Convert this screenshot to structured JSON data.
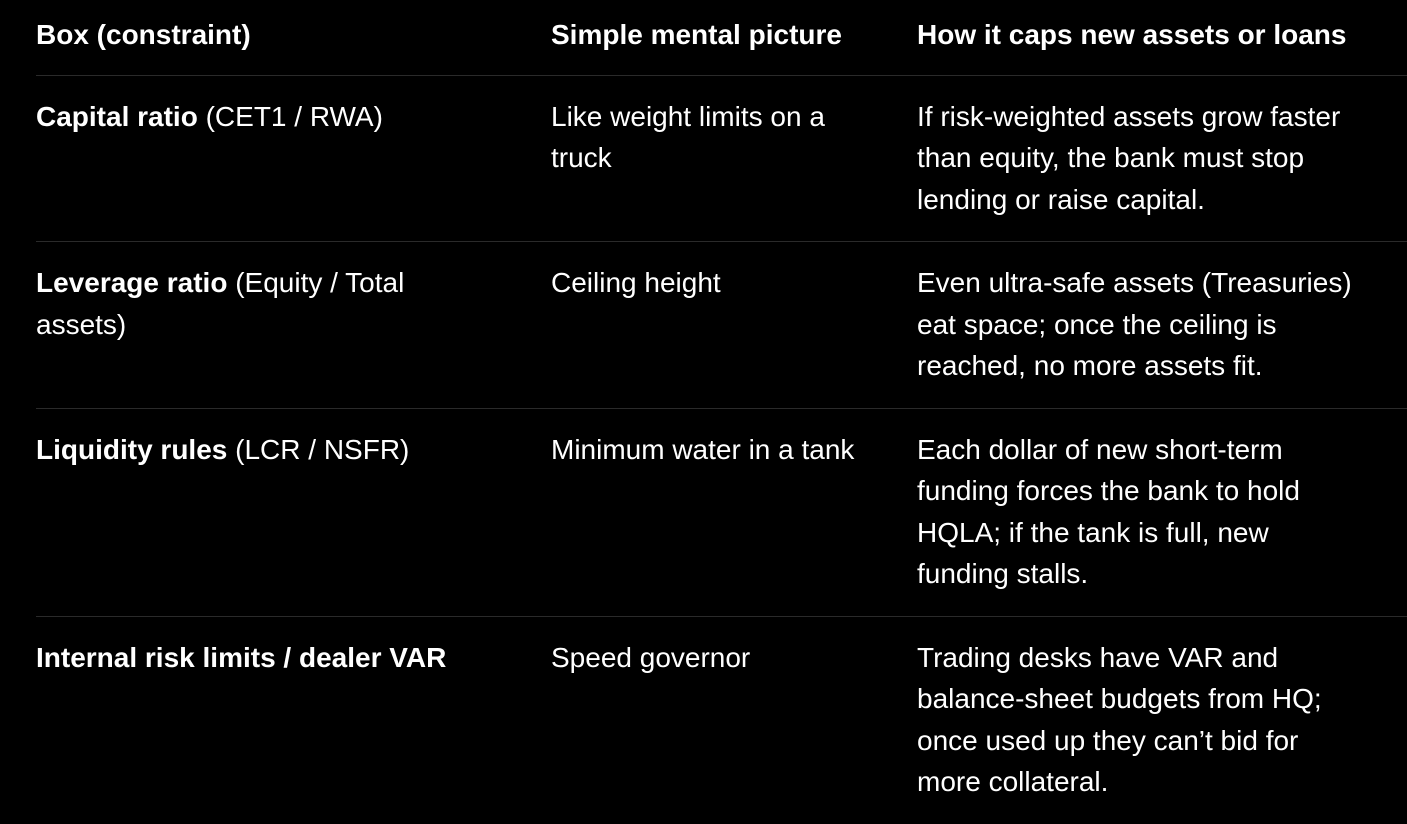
{
  "table": {
    "headers": [
      "Box (constraint)",
      "Simple mental picture",
      "How it caps new assets or loans"
    ],
    "rows": [
      {
        "box_bold": "Capital ratio",
        "box_rest": " (CET1 / RWA)",
        "picture": [
          "Like weight limits on a",
          "truck"
        ],
        "caps": [
          "If risk-weighted assets grow faster",
          "than equity, the bank must stop",
          "lending or raise capital."
        ]
      },
      {
        "box_bold": "Leverage ratio",
        "box_rest": " (Equity / Total",
        "box_rest2": "assets)",
        "picture": [
          "Ceiling height"
        ],
        "caps": [
          "Even ultra-safe assets (Treasuries)",
          "eat space; once the ceiling is",
          "reached, no more assets fit."
        ]
      },
      {
        "box_bold": "Liquidity rules",
        "box_rest": " (LCR / NSFR)",
        "picture": [
          "Minimum water in a tank"
        ],
        "caps": [
          "Each dollar of new short-term",
          "funding forces the bank to hold",
          "HQLA; if the tank is full, new",
          "funding stalls."
        ]
      },
      {
        "box_bold": "Internal risk limits / dealer VAR",
        "box_rest": "",
        "picture": [
          "Speed governor"
        ],
        "caps": [
          "Trading desks have VAR and",
          "balance-sheet budgets from HQ;",
          "once used up they can’t bid for",
          "more collateral."
        ]
      }
    ]
  }
}
